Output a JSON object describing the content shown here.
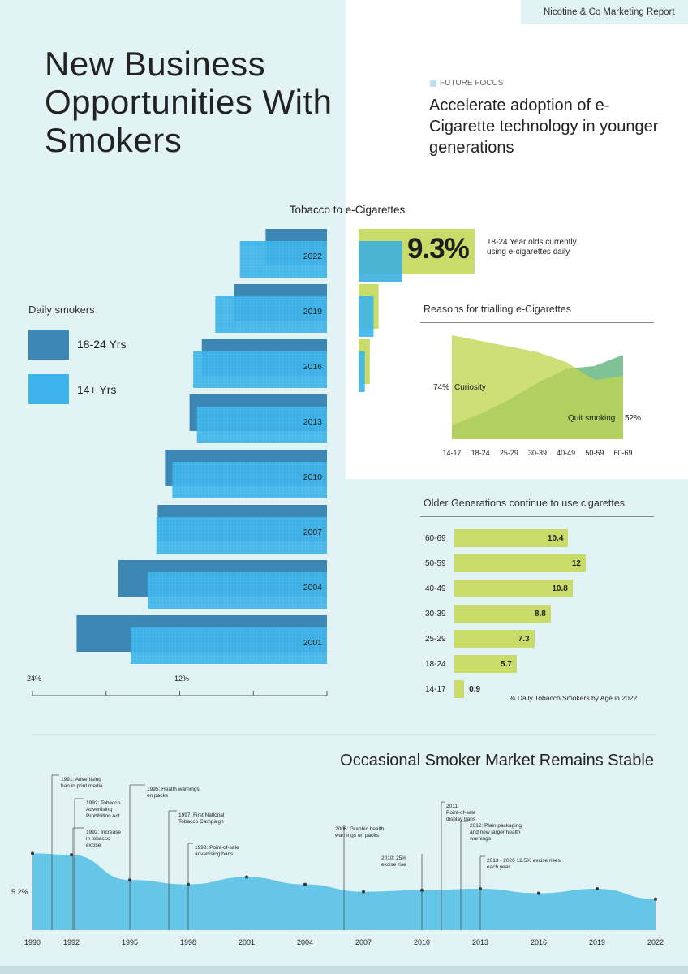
{
  "header": {
    "brand": "Nicotine & Co",
    "report": "Marketing Report"
  },
  "title": "New Business Opportunities With Smokers",
  "future_focus": {
    "label": "FUTURE FOCUS",
    "headline": "Accelerate adoption of e-Cigarette technology in younger generations"
  },
  "colors": {
    "dark_blue": "#3d87b5",
    "light_blue": "#3cb3ea",
    "green": "#c9dc6a",
    "area_blue": "#66c6e8",
    "background": "#e2f3f5"
  },
  "legend": {
    "title": "Daily smokers",
    "items": [
      {
        "label": "18-24 Yrs",
        "color": "#3d87b5"
      },
      {
        "label": "14+ Yrs",
        "color": "#3cb3ea"
      }
    ]
  },
  "stat": {
    "value": "9.3%",
    "text": "18-24 Year olds currently using e-cigarettes daily"
  },
  "chart_data": [
    {
      "type": "bar",
      "title": "Tobacco to e-Cigarettes",
      "orientation": "horizontal",
      "categories": [
        "2022",
        "2019",
        "2016",
        "2013",
        "2010",
        "2007",
        "2004",
        "2001"
      ],
      "series": [
        {
          "name": "18-24 Yrs",
          "values": [
            5.0,
            7.6,
            10.2,
            11.2,
            13.2,
            13.8,
            17.0,
            20.4
          ]
        },
        {
          "name": "14+ Yrs",
          "values": [
            7.1,
            9.1,
            10.9,
            10.6,
            12.6,
            13.9,
            14.6,
            16.0
          ]
        }
      ],
      "e_cigarette_bars": {
        "categories": [
          "2022",
          "2019",
          "2016"
        ],
        "green_values": [
          9.3,
          1.6,
          0.9
        ],
        "blue_values": [
          3.6,
          1.2,
          0.5
        ]
      },
      "x_ticks": [
        "24%",
        "12%"
      ],
      "xlim": [
        0,
        24
      ]
    },
    {
      "type": "area",
      "title": "Reasons for trialling e-Cigarettes",
      "categories": [
        "14-17",
        "18-24",
        "25-29",
        "30-39",
        "40-49",
        "50-59",
        "60-69"
      ],
      "series": [
        {
          "name": "Curiosity",
          "values": [
            74,
            70,
            66,
            62,
            55,
            42,
            45
          ]
        },
        {
          "name": "Quit smoking",
          "values": [
            10,
            18,
            28,
            40,
            50,
            52,
            60
          ]
        }
      ],
      "annotations": [
        "74%",
        "52%"
      ],
      "ylim": [
        0,
        80
      ]
    },
    {
      "type": "bar",
      "title": "Older Generations continue to use cigarettes",
      "orientation": "horizontal",
      "categories": [
        "60-69",
        "50-59",
        "40-49",
        "30-39",
        "25-29",
        "18-24",
        "14-17"
      ],
      "values": [
        10.4,
        12,
        10.8,
        8.8,
        7.3,
        5.7,
        0.9
      ],
      "caption": "% Daily Tobacco Smokers by Age in 2022"
    },
    {
      "type": "area",
      "title": "Occasional Smoker Market Remains Stable",
      "x": [
        1990,
        1992,
        1995,
        1998,
        2001,
        2004,
        2007,
        2010,
        2013,
        2016,
        2019,
        2022
      ],
      "values": [
        5.2,
        5.1,
        3.4,
        3.1,
        3.6,
        3.1,
        2.6,
        2.7,
        2.8,
        2.5,
        2.8,
        2.1
      ],
      "y_label": "5.2%",
      "events": [
        {
          "year": 1991,
          "text": "1991: Advertising ban in print media"
        },
        {
          "year": 1992,
          "text": "1992: Tobacco Advertising Prohibition Act"
        },
        {
          "year": 1992,
          "text": "1992: Increase in tobacco excise"
        },
        {
          "year": 1995,
          "text": "1995: Health warnings on packs"
        },
        {
          "year": 1997,
          "text": "1997: First National Tobacco Campaign"
        },
        {
          "year": 1998,
          "text": "1998: Point-of-sale advertising bans"
        },
        {
          "year": 2006,
          "text": "2006: Graphic health warnings on packs"
        },
        {
          "year": 2010,
          "text": "2010: 25% excise rise"
        },
        {
          "year": 2011,
          "text": "2011: Point-of-sale display bans"
        },
        {
          "year": 2012,
          "text": "2012: Plain packaging and new larger health warnings"
        },
        {
          "year": 2013,
          "text": "2013 - 2020 12.5% excise rises each year"
        }
      ]
    }
  ]
}
